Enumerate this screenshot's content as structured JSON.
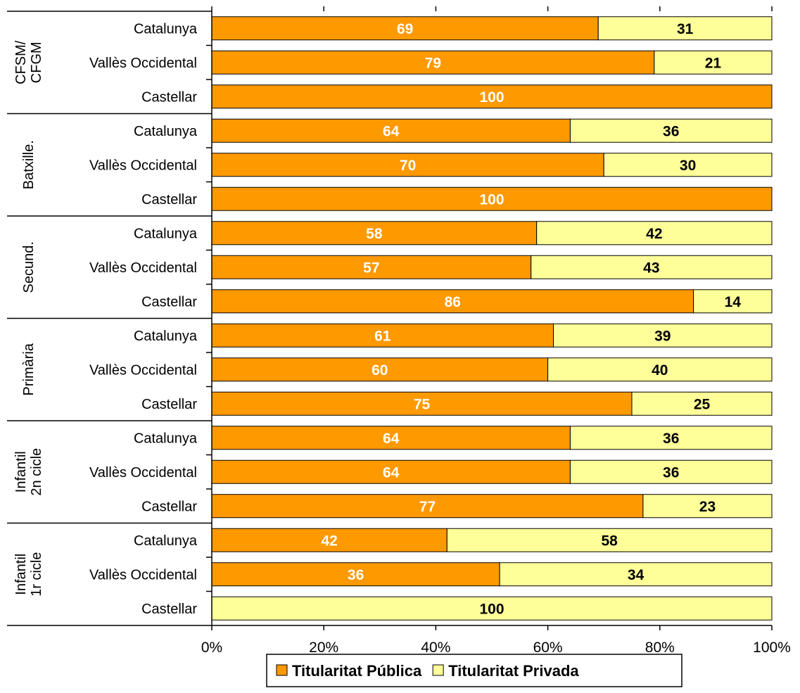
{
  "chart_data": {
    "type": "bar",
    "orientation": "horizontal",
    "stacked": true,
    "percent_stacked": true,
    "xlim": [
      0,
      100
    ],
    "x_ticks": [
      "0%",
      "20%",
      "40%",
      "60%",
      "80%",
      "100%"
    ],
    "legend_position": "bottom",
    "series": [
      {
        "name": "Titularitat Pública",
        "color": "#FF9900"
      },
      {
        "name": "Titularitat Privada",
        "color": "#FFFF99"
      }
    ],
    "groups": [
      {
        "label": [
          "CFSM/",
          "CFGM"
        ],
        "rows": [
          {
            "label": "Catalunya",
            "public": 69,
            "private": 31,
            "public_label": "69",
            "private_label": "31"
          },
          {
            "label": "Vallès Occidental",
            "public": 79,
            "private": 21,
            "public_label": "79",
            "private_label": "21"
          },
          {
            "label": "Castellar",
            "public": 100,
            "private": 0,
            "public_label": "100",
            "private_label": ""
          }
        ]
      },
      {
        "label": [
          "Batxille."
        ],
        "rows": [
          {
            "label": "Catalunya",
            "public": 64,
            "private": 36,
            "public_label": "64",
            "private_label": "36"
          },
          {
            "label": "Vallès Occidental",
            "public": 70,
            "private": 30,
            "public_label": "70",
            "private_label": "30"
          },
          {
            "label": "Castellar",
            "public": 100,
            "private": 0,
            "public_label": "100",
            "private_label": ""
          }
        ]
      },
      {
        "label": [
          "Secund."
        ],
        "rows": [
          {
            "label": "Catalunya",
            "public": 58,
            "private": 42,
            "public_label": "58",
            "private_label": "42"
          },
          {
            "label": "Vallès Occidental",
            "public": 57,
            "private": 43,
            "public_label": "57",
            "private_label": "43"
          },
          {
            "label": "Castellar",
            "public": 86,
            "private": 14,
            "public_label": "86",
            "private_label": "14"
          }
        ]
      },
      {
        "label": [
          "Primària"
        ],
        "rows": [
          {
            "label": "Catalunya",
            "public": 61,
            "private": 39,
            "public_label": "61",
            "private_label": "39"
          },
          {
            "label": "Vallès Occidental",
            "public": 60,
            "private": 40,
            "public_label": "60",
            "private_label": "40"
          },
          {
            "label": "Castellar",
            "public": 75,
            "private": 25,
            "public_label": "75",
            "private_label": "25"
          }
        ]
      },
      {
        "label": [
          "Infantil",
          "2n cicle"
        ],
        "rows": [
          {
            "label": "Catalunya",
            "public": 64,
            "private": 36,
            "public_label": "64",
            "private_label": "36"
          },
          {
            "label": "Vallès Occidental",
            "public": 64,
            "private": 36,
            "public_label": "64",
            "private_label": "36"
          },
          {
            "label": "Castellar",
            "public": 77,
            "private": 23,
            "public_label": "77",
            "private_label": "23"
          }
        ]
      },
      {
        "label": [
          "Infantil",
          "1r cicle"
        ],
        "rows": [
          {
            "label": "Catalunya",
            "public": 42,
            "private": 58,
            "public_label": "42",
            "private_label": "58"
          },
          {
            "label": "Vallès Occidental",
            "public": 51.4,
            "private": 48.6,
            "public_label": "36",
            "private_label": "34"
          },
          {
            "label": "Castellar",
            "public": 0,
            "private": 100,
            "public_label": "",
            "private_label": "100"
          }
        ]
      }
    ]
  }
}
